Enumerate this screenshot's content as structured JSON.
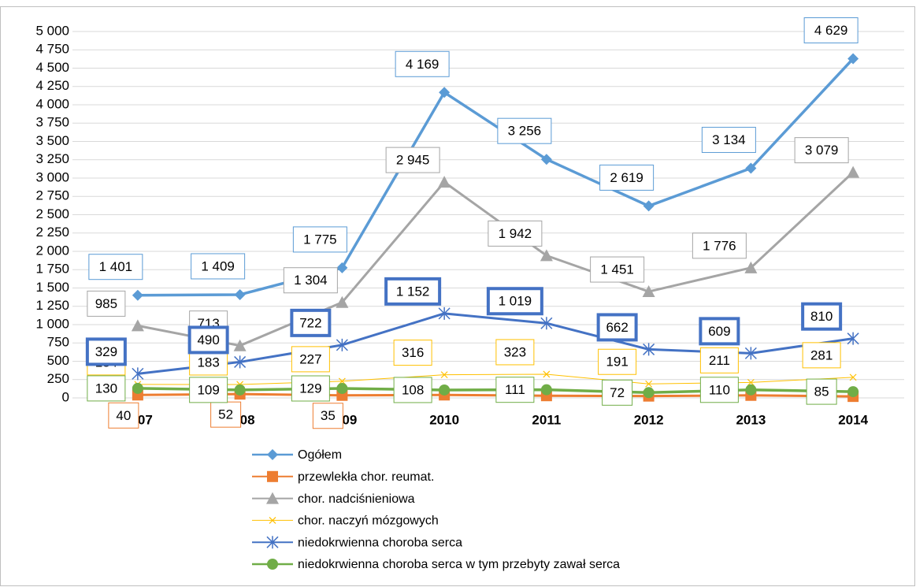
{
  "chart_data": {
    "type": "line",
    "categories": [
      "2007",
      "2008",
      "2009",
      "2010",
      "2011",
      "2012",
      "2013",
      "2014"
    ],
    "ylim": [
      0,
      5000
    ],
    "yticks": [
      0,
      250,
      500,
      750,
      {
        "value": 1000,
        "label": "1 000"
      },
      {
        "value": 1250,
        "label": "1 250"
      },
      {
        "value": 1500,
        "label": "1 500"
      },
      {
        "value": 1750,
        "label": "1 750"
      },
      {
        "value": 2000,
        "label": "2 000"
      },
      {
        "value": 2250,
        "label": "2 250"
      },
      {
        "value": 2500,
        "label": "2 500"
      },
      {
        "value": 2750,
        "label": "2 750"
      },
      {
        "value": 3000,
        "label": "3 000"
      },
      {
        "value": 3250,
        "label": "3 250"
      },
      {
        "value": 3500,
        "label": "3 500"
      },
      {
        "value": 3750,
        "label": "3 750"
      },
      {
        "value": 4000,
        "label": "4 000"
      },
      {
        "value": 4250,
        "label": "4 250"
      },
      {
        "value": 4500,
        "label": "4 500"
      },
      {
        "value": 4750,
        "label": "4 750"
      },
      {
        "value": 5000,
        "label": "5 000"
      }
    ],
    "grid": true,
    "legend": "bottom",
    "series": [
      {
        "name": "Ogółem",
        "color": "#5b9bd5",
        "marker": "diamond",
        "values": [
          1401,
          1409,
          1775,
          4169,
          3256,
          2619,
          3134,
          4629
        ],
        "value_labels": [
          "1 401",
          "1 409",
          "1 775",
          "4 169",
          "3 256",
          "2 619",
          "3 134",
          "4 629"
        ]
      },
      {
        "name": "przewlekła chor. reumat.",
        "color": "#ed7d31",
        "marker": "square",
        "values": [
          40,
          52,
          35,
          40,
          30,
          25,
          35,
          20
        ],
        "value_labels": [
          "40",
          "52",
          "35",
          null,
          null,
          null,
          null,
          null
        ]
      },
      {
        "name": "chor. nadciśnieniowa",
        "color": "#a5a5a5",
        "marker": "triangle",
        "values": [
          985,
          713,
          1304,
          2945,
          1942,
          1451,
          1776,
          3079
        ],
        "value_labels": [
          "985",
          "713",
          "1 304",
          "2 945",
          "1 942",
          "1 451",
          "1 776",
          "3 079"
        ]
      },
      {
        "name": "chor. naczyń mózgowych",
        "color": "#ffc000",
        "marker": "x",
        "values": [
          184,
          183,
          227,
          316,
          323,
          191,
          211,
          281
        ],
        "value_labels": [
          "184",
          "183",
          "227",
          "316",
          "323",
          "191",
          "211",
          "281"
        ]
      },
      {
        "name": "niedokrwienna choroba serca",
        "color": "#4472c4",
        "marker": "star",
        "values": [
          329,
          490,
          722,
          1152,
          1019,
          662,
          609,
          810
        ],
        "value_labels": [
          "329",
          "490",
          "722",
          "1 152",
          "1 019",
          "662",
          "609",
          "810"
        ]
      },
      {
        "name": "niedokrwienna choroba serca w tym przebyty zawał serca",
        "color": "#70ad47",
        "marker": "circle",
        "values": [
          130,
          109,
          129,
          108,
          111,
          72,
          110,
          85
        ],
        "value_labels": [
          "130",
          "109",
          "129",
          "108",
          "111",
          "72",
          "110",
          "85"
        ]
      }
    ]
  }
}
